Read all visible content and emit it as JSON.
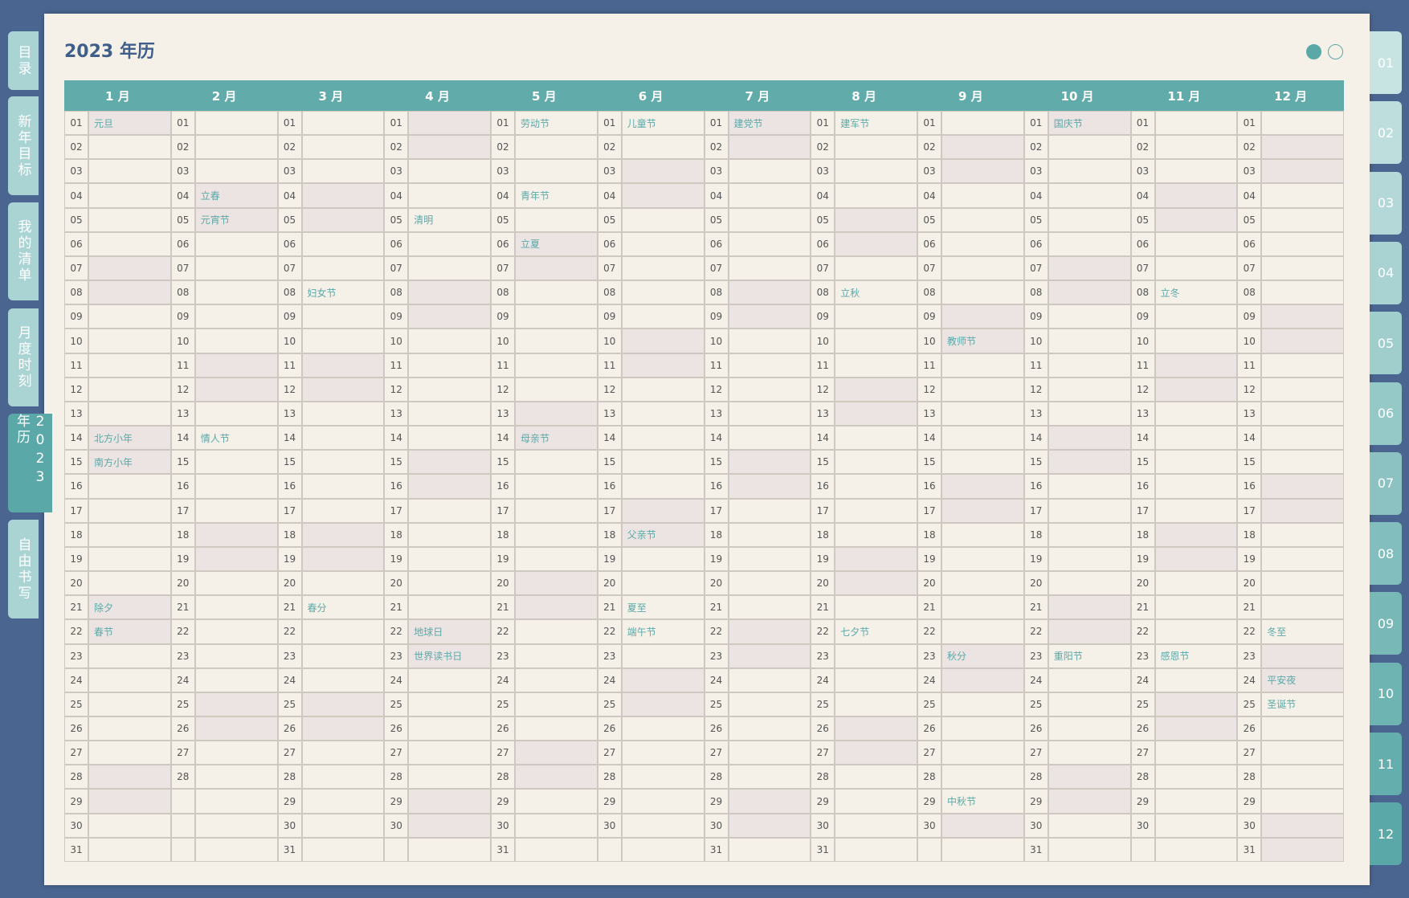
{
  "title": "2023 年历",
  "left_tabs": [
    "目录",
    "新年目标",
    "我的清单",
    "月度时刻",
    "2023 年历",
    "自由书写"
  ],
  "active_left_tab": 4,
  "right_tabs": [
    "01",
    "02",
    "03",
    "04",
    "05",
    "06",
    "07",
    "08",
    "09",
    "10",
    "11",
    "12"
  ],
  "months": [
    {
      "name": "1 月",
      "first_weekday": 0,
      "days": [
        "01",
        "02",
        "03",
        "04",
        "05",
        "06",
        "07",
        "08",
        "09",
        "10",
        "11",
        "12",
        "13",
        "14",
        "15",
        "16",
        "17",
        "18",
        "19",
        "20",
        "21",
        "22",
        "23",
        "24",
        "25",
        "26",
        "27",
        "28",
        "29",
        "30",
        "31"
      ],
      "events": {
        "0": "元旦",
        "13": "北方小年",
        "14": "南方小年",
        "20": "除夕",
        "21": "春节"
      }
    },
    {
      "name": "2 月",
      "first_weekday": 3,
      "days": [
        "01",
        "02",
        "03",
        "04",
        "05",
        "06",
        "07",
        "08",
        "09",
        "10",
        "11",
        "12",
        "13",
        "14",
        "15",
        "16",
        "17",
        "18",
        "19",
        "20",
        "21",
        "22",
        "23",
        "24",
        "25",
        "26",
        "27",
        "28"
      ],
      "events": {
        "3": "立春",
        "4": "元宵节",
        "13": "情人节"
      }
    },
    {
      "name": "3 月",
      "first_weekday": 3,
      "days": [
        "01",
        "02",
        "03",
        "04",
        "05",
        "06",
        "07",
        "08",
        "09",
        "10",
        "11",
        "12",
        "13",
        "14",
        "15",
        "16",
        "17",
        "18",
        "19",
        "20",
        "21",
        "22",
        "23",
        "24",
        "25",
        "26",
        "27",
        "28",
        "29",
        "30",
        "31"
      ],
      "events": {
        "7": "妇女节",
        "20": "春分"
      }
    },
    {
      "name": "4 月",
      "first_weekday": 6,
      "days": [
        "01",
        "02",
        "03",
        "04",
        "05",
        "06",
        "07",
        "08",
        "09",
        "10",
        "11",
        "12",
        "13",
        "14",
        "15",
        "16",
        "17",
        "18",
        "19",
        "20",
        "21",
        "22",
        "23",
        "24",
        "25",
        "26",
        "27",
        "28",
        "29",
        "30"
      ],
      "events": {
        "4": "清明",
        "21": "地球日",
        "22": "世界读书日"
      }
    },
    {
      "name": "5 月",
      "first_weekday": 1,
      "days": [
        "01",
        "02",
        "03",
        "04",
        "05",
        "06",
        "07",
        "08",
        "09",
        "10",
        "11",
        "12",
        "13",
        "14",
        "15",
        "16",
        "17",
        "18",
        "19",
        "20",
        "21",
        "22",
        "23",
        "24",
        "25",
        "26",
        "27",
        "28",
        "29",
        "30",
        "31"
      ],
      "events": {
        "0": "劳动节",
        "3": "青年节",
        "5": "立夏",
        "13": "母亲节"
      }
    },
    {
      "name": "6 月",
      "first_weekday": 4,
      "days": [
        "01",
        "02",
        "03",
        "04",
        "05",
        "06",
        "07",
        "08",
        "09",
        "10",
        "11",
        "12",
        "13",
        "14",
        "15",
        "16",
        "17",
        "18",
        "19",
        "20",
        "21",
        "22",
        "23",
        "24",
        "25",
        "26",
        "27",
        "28",
        "29",
        "30"
      ],
      "events": {
        "0": "儿童节",
        "17": "父亲节",
        "20": "夏至",
        "21": "端午节"
      }
    },
    {
      "name": "7 月",
      "first_weekday": 6,
      "days": [
        "01",
        "02",
        "03",
        "04",
        "05",
        "06",
        "07",
        "08",
        "09",
        "10",
        "11",
        "12",
        "13",
        "14",
        "15",
        "16",
        "17",
        "18",
        "19",
        "20",
        "21",
        "22",
        "23",
        "24",
        "25",
        "26",
        "27",
        "28",
        "29",
        "30",
        "31"
      ],
      "events": {
        "0": "建党节"
      }
    },
    {
      "name": "8 月",
      "first_weekday": 2,
      "days": [
        "01",
        "02",
        "03",
        "04",
        "05",
        "06",
        "07",
        "08",
        "09",
        "10",
        "11",
        "12",
        "13",
        "14",
        "15",
        "16",
        "17",
        "18",
        "19",
        "20",
        "21",
        "22",
        "23",
        "24",
        "25",
        "26",
        "27",
        "28",
        "29",
        "30",
        "31"
      ],
      "events": {
        "0": "建军节",
        "7": "立秋",
        "21": "七夕节"
      }
    },
    {
      "name": "9 月",
      "first_weekday": 5,
      "days": [
        "01",
        "02",
        "03",
        "04",
        "05",
        "06",
        "07",
        "08",
        "09",
        "10",
        "11",
        "12",
        "13",
        "14",
        "15",
        "16",
        "17",
        "18",
        "19",
        "20",
        "21",
        "22",
        "23",
        "24",
        "25",
        "26",
        "27",
        "28",
        "29",
        "30"
      ],
      "events": {
        "9": "教师节",
        "22": "秋分",
        "28": "中秋节"
      }
    },
    {
      "name": "10 月",
      "first_weekday": 0,
      "days": [
        "01",
        "02",
        "03",
        "04",
        "05",
        "06",
        "07",
        "08",
        "09",
        "10",
        "11",
        "12",
        "13",
        "14",
        "15",
        "16",
        "17",
        "18",
        "19",
        "20",
        "21",
        "22",
        "23",
        "24",
        "25",
        "26",
        "27",
        "28",
        "29",
        "30",
        "31"
      ],
      "events": {
        "0": "国庆节",
        "22": "重阳节"
      }
    },
    {
      "name": "11 月",
      "first_weekday": 3,
      "days": [
        "01",
        "02",
        "03",
        "04",
        "05",
        "06",
        "07",
        "08",
        "09",
        "10",
        "11",
        "12",
        "13",
        "14",
        "15",
        "16",
        "17",
        "18",
        "19",
        "20",
        "21",
        "22",
        "23",
        "24",
        "25",
        "26",
        "27",
        "28",
        "29",
        "30"
      ],
      "events": {
        "7": "立冬",
        "22": "感恩节"
      }
    },
    {
      "name": "12 月",
      "first_weekday": 5,
      "days": [
        "01",
        "02",
        "03",
        "04",
        "05",
        "06",
        "07",
        "08",
        "09",
        "10",
        "11",
        "12",
        "13",
        "14",
        "15",
        "16",
        "17",
        "18",
        "19",
        "20",
        "21",
        "22",
        "23",
        "24",
        "25",
        "26",
        "27",
        "28",
        "29",
        "30",
        "31"
      ],
      "events": {
        "21": "冬至",
        "23": "平安夜",
        "24": "圣诞节"
      }
    }
  ]
}
